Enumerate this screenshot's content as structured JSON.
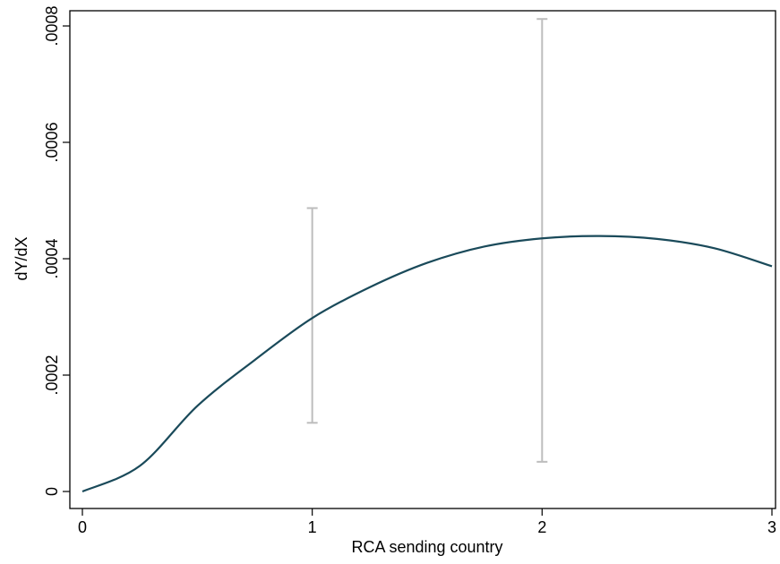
{
  "chart_data": {
    "type": "line",
    "title": "",
    "xlabel": "RCA sending country",
    "ylabel": "dY/dX",
    "xlim": [
      0,
      3
    ],
    "ylim": [
      0,
      0.0008
    ],
    "xticks": [
      0,
      1,
      2,
      3
    ],
    "xtick_labels": [
      "0",
      "1",
      "2",
      "3"
    ],
    "yticks": [
      0,
      0.0002,
      0.0004,
      0.0006,
      0.0008
    ],
    "ytick_labels": [
      "0",
      ".0002",
      ".0004",
      ".0006",
      ".0008"
    ],
    "grid": false,
    "series": [
      {
        "type": "line",
        "color": "#1a4a5a",
        "x": [
          0,
          0.25,
          0.5,
          0.75,
          1.0,
          1.25,
          1.5,
          1.75,
          2.0,
          2.25,
          2.5,
          2.75,
          3.0
        ],
        "y": [
          0,
          4.4e-05,
          0.000147,
          0.000226,
          0.000298,
          0.000351,
          0.000393,
          0.000421,
          0.000435,
          0.000439,
          0.000434,
          0.000418,
          0.000387
        ]
      }
    ],
    "error_bars": [
      {
        "x": 1,
        "low": 0.000118,
        "high": 0.000487,
        "color": "#bdbdbd"
      },
      {
        "x": 2,
        "low": 5.1e-05,
        "high": 0.000812,
        "color": "#bdbdbd"
      }
    ]
  }
}
